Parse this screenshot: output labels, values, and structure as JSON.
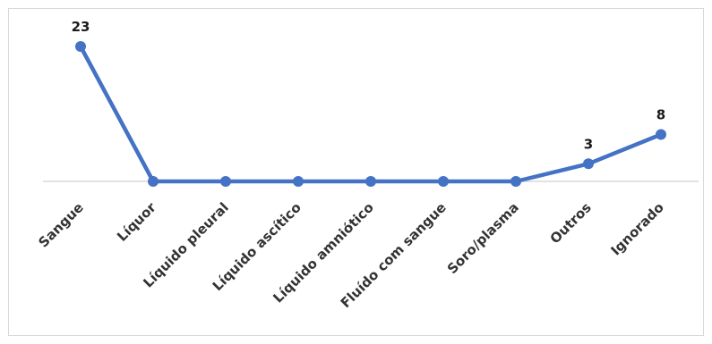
{
  "chart_data": {
    "type": "line",
    "categories": [
      "Sangue",
      "Líquor",
      "Líquido pleural",
      "Líquido ascítico",
      "Líquido amniótico",
      "Fluído com sangue",
      "Soro/plasma",
      "Outros",
      "Ignorado"
    ],
    "values": [
      23,
      0,
      0,
      0,
      0,
      0,
      0,
      3,
      8
    ],
    "data_labels": [
      "23",
      "",
      "",
      "",
      "",
      "",
      "",
      "3",
      "8"
    ],
    "title": "",
    "xlabel": "",
    "ylabel": "",
    "ylim": [
      0,
      23
    ],
    "grid": false,
    "legend": "none",
    "line_color": "#4472c4",
    "axis_color": "#d9d9d9"
  }
}
